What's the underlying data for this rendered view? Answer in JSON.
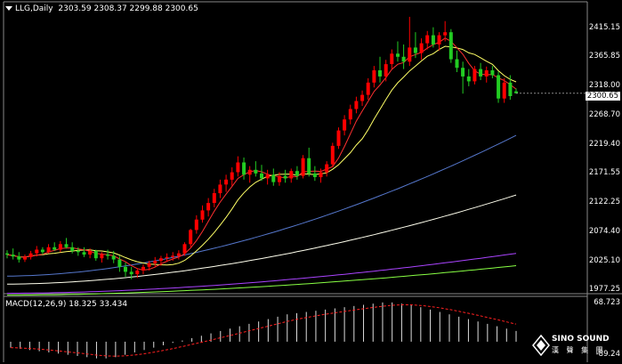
{
  "header": {
    "symbol_tf": "LLG,Daily",
    "ohlc": "2303.59 2308.37 2299.88 2300.65"
  },
  "price_axis": {
    "labels": [
      "2415.15",
      "2365.85",
      "2318.00",
      "2268.70",
      "2219.40",
      "2171.55",
      "2122.25",
      "2074.40",
      "2025.10",
      "1977.25"
    ],
    "current": "2300.65"
  },
  "macd": {
    "label": "MACD(12,26,9) 18.325 33.434",
    "axis_top": "68.723",
    "axis_bottom": "-89.24"
  },
  "logo": {
    "line1": "SINO SOUND",
    "line2": "漢 聲 集 團"
  },
  "colors": {
    "background": "#000000",
    "bull": "#ff0000",
    "bear": "#22cc22",
    "ma_fast": "#ff3030",
    "ma_mid": "#ffff66",
    "ma_slow1": "#5577cc",
    "ma_slow2": "#ffffee",
    "ma_slow3": "#aa44ff",
    "ma_slow4": "#88ff44"
  },
  "chart_data": {
    "type": "candlestick",
    "price_range": [
      1977.25,
      2435
    ],
    "candles": [
      [
        2040,
        2045,
        2032,
        2038
      ],
      [
        2038,
        2048,
        2030,
        2035
      ],
      [
        2035,
        2042,
        2025,
        2030
      ],
      [
        2030,
        2038,
        2026,
        2034
      ],
      [
        2034,
        2044,
        2030,
        2040
      ],
      [
        2040,
        2052,
        2035,
        2046
      ],
      [
        2046,
        2050,
        2038,
        2042
      ],
      [
        2042,
        2055,
        2040,
        2050
      ],
      [
        2050,
        2058,
        2044,
        2046
      ],
      [
        2046,
        2060,
        2042,
        2055
      ],
      [
        2055,
        2065,
        2048,
        2050
      ],
      [
        2050,
        2058,
        2040,
        2044
      ],
      [
        2044,
        2050,
        2036,
        2042
      ],
      [
        2042,
        2050,
        2034,
        2038
      ],
      [
        2038,
        2048,
        2032,
        2044
      ],
      [
        2044,
        2046,
        2028,
        2032
      ],
      [
        2032,
        2042,
        2025,
        2038
      ],
      [
        2038,
        2046,
        2030,
        2036
      ],
      [
        2036,
        2044,
        2024,
        2030
      ],
      [
        2030,
        2036,
        2010,
        2018
      ],
      [
        2018,
        2025,
        2002,
        2010
      ],
      [
        2010,
        2018,
        1998,
        2006
      ],
      [
        2006,
        2016,
        2000,
        2012
      ],
      [
        2012,
        2022,
        2006,
        2018
      ],
      [
        2018,
        2028,
        2012,
        2024
      ],
      [
        2024,
        2034,
        2018,
        2028
      ],
      [
        2028,
        2036,
        2020,
        2032
      ],
      [
        2032,
        2040,
        2026,
        2034
      ],
      [
        2034,
        2042,
        2028,
        2036
      ],
      [
        2036,
        2045,
        2030,
        2040
      ],
      [
        2040,
        2058,
        2036,
        2055
      ],
      [
        2055,
        2080,
        2050,
        2078
      ],
      [
        2078,
        2102,
        2072,
        2095
      ],
      [
        2095,
        2118,
        2090,
        2110
      ],
      [
        2110,
        2130,
        2100,
        2122
      ],
      [
        2122,
        2145,
        2115,
        2138
      ],
      [
        2138,
        2160,
        2130,
        2152
      ],
      [
        2152,
        2168,
        2140,
        2160
      ],
      [
        2160,
        2180,
        2150,
        2172
      ],
      [
        2172,
        2198,
        2165,
        2188
      ],
      [
        2188,
        2196,
        2160,
        2168
      ],
      [
        2168,
        2182,
        2155,
        2176
      ],
      [
        2176,
        2190,
        2165,
        2170
      ],
      [
        2170,
        2184,
        2158,
        2162
      ],
      [
        2162,
        2176,
        2152,
        2168
      ],
      [
        2168,
        2178,
        2150,
        2156
      ],
      [
        2156,
        2172,
        2150,
        2166
      ],
      [
        2166,
        2176,
        2155,
        2162
      ],
      [
        2162,
        2178,
        2155,
        2174
      ],
      [
        2174,
        2182,
        2160,
        2166
      ],
      [
        2166,
        2200,
        2162,
        2195
      ],
      [
        2195,
        2212,
        2165,
        2170
      ],
      [
        2170,
        2182,
        2158,
        2164
      ],
      [
        2164,
        2178,
        2155,
        2172
      ],
      [
        2172,
        2190,
        2165,
        2185
      ],
      [
        2185,
        2220,
        2180,
        2215
      ],
      [
        2215,
        2245,
        2210,
        2240
      ],
      [
        2240,
        2265,
        2232,
        2258
      ],
      [
        2258,
        2282,
        2250,
        2275
      ],
      [
        2275,
        2295,
        2268,
        2288
      ],
      [
        2288,
        2305,
        2280,
        2298
      ],
      [
        2298,
        2325,
        2290,
        2318
      ],
      [
        2318,
        2345,
        2310,
        2338
      ],
      [
        2338,
        2360,
        2318,
        2328
      ],
      [
        2328,
        2355,
        2320,
        2348
      ],
      [
        2348,
        2372,
        2340,
        2365
      ],
      [
        2365,
        2385,
        2352,
        2360
      ],
      [
        2360,
        2380,
        2340,
        2352
      ],
      [
        2352,
        2425,
        2345,
        2375
      ],
      [
        2375,
        2400,
        2358,
        2366
      ],
      [
        2366,
        2390,
        2355,
        2382
      ],
      [
        2382,
        2402,
        2372,
        2395
      ],
      [
        2395,
        2408,
        2375,
        2380
      ],
      [
        2380,
        2400,
        2370,
        2395
      ],
      [
        2395,
        2418,
        2385,
        2400
      ],
      [
        2400,
        2405,
        2350,
        2356
      ],
      [
        2356,
        2370,
        2335,
        2342
      ],
      [
        2342,
        2352,
        2300,
        2328
      ],
      [
        2328,
        2340,
        2312,
        2320
      ],
      [
        2320,
        2345,
        2315,
        2340
      ],
      [
        2340,
        2350,
        2322,
        2328
      ],
      [
        2328,
        2344,
        2318,
        2338
      ],
      [
        2338,
        2345,
        2325,
        2330
      ],
      [
        2330,
        2336,
        2285,
        2292
      ],
      [
        2292,
        2325,
        2285,
        2318
      ],
      [
        2318,
        2330,
        2290,
        2296
      ],
      [
        2303.59,
        2308.37,
        2299.88,
        2300.65
      ]
    ],
    "macd": {
      "histogram": [
        -10,
        -12,
        -14,
        -16,
        -18,
        -20,
        -22,
        -24,
        -26,
        -28,
        -28,
        -26,
        -22,
        -18,
        -14,
        -10,
        -6,
        -2,
        2,
        6,
        10,
        14,
        18,
        22,
        26,
        30,
        34,
        38,
        42,
        46,
        48,
        50,
        52,
        54,
        56,
        58,
        60,
        62,
        64,
        66,
        66,
        64,
        62,
        58,
        54,
        50,
        46,
        42,
        38,
        34,
        30,
        26,
        22,
        18
      ]
    }
  }
}
